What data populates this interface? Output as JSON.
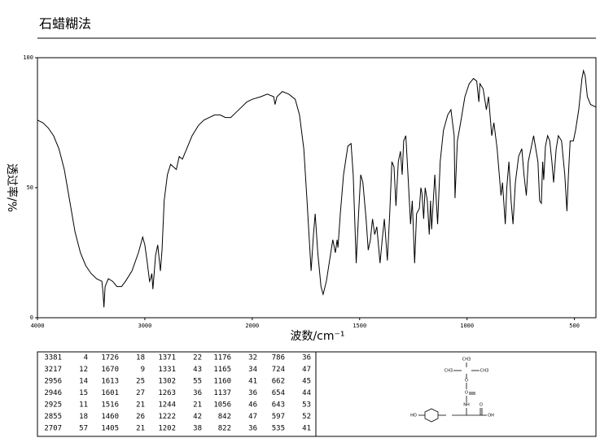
{
  "chart_data": {
    "type": "line",
    "title": "石蜡糊法",
    "x_label": "波数/cm⁻¹",
    "y_label": "透过率/%",
    "xlim": [
      4000,
      400
    ],
    "x_scale_break": 2000,
    "xticks": [
      4000,
      3000,
      2000,
      1500,
      1000,
      500
    ],
    "ylim": [
      0,
      100
    ],
    "yticks": [
      0,
      50,
      100
    ],
    "color": "#000000",
    "x": [
      4000,
      3950,
      3900,
      3850,
      3800,
      3750,
      3700,
      3650,
      3600,
      3550,
      3500,
      3450,
      3400,
      3390,
      3381,
      3370,
      3340,
      3300,
      3260,
      3217,
      3180,
      3120,
      3060,
      3020,
      3000,
      2980,
      2956,
      2946,
      2935,
      2925,
      2900,
      2880,
      2870,
      2855,
      2840,
      2820,
      2790,
      2760,
      2707,
      2680,
      2650,
      2600,
      2560,
      2530,
      2500,
      2450,
      2400,
      2350,
      2300,
      2250,
      2200,
      2150,
      2100,
      2050,
      2000,
      1960,
      1930,
      1900,
      1894,
      1885,
      1860,
      1830,
      1800,
      1780,
      1760,
      1745,
      1726,
      1715,
      1707,
      1695,
      1680,
      1670,
      1655,
      1640,
      1625,
      1613,
      1605,
      1601,
      1590,
      1575,
      1555,
      1540,
      1530,
      1516,
      1505,
      1495,
      1485,
      1470,
      1460,
      1450,
      1440,
      1430,
      1420,
      1405,
      1395,
      1385,
      1371,
      1360,
      1350,
      1340,
      1331,
      1320,
      1310,
      1302,
      1295,
      1285,
      1275,
      1263,
      1255,
      1244,
      1235,
      1222,
      1215,
      1210,
      1202,
      1195,
      1185,
      1176,
      1170,
      1165,
      1160,
      1150,
      1137,
      1125,
      1110,
      1090,
      1075,
      1060,
      1056,
      1045,
      1030,
      1010,
      990,
      970,
      955,
      945,
      940,
      925,
      910,
      900,
      885,
      875,
      860,
      850,
      842,
      835,
      822,
      815,
      805,
      795,
      786,
      775,
      760,
      745,
      735,
      724,
      715,
      700,
      690,
      680,
      670,
      662,
      654,
      648,
      643,
      635,
      625,
      615,
      605,
      597,
      585,
      575,
      560,
      545,
      535,
      528,
      520,
      505,
      495,
      480,
      465,
      458,
      450,
      440,
      425,
      400
    ],
    "values": [
      76,
      75,
      73,
      70,
      65,
      57,
      45,
      33,
      25,
      20,
      17,
      15,
      14,
      10,
      4,
      12,
      15,
      14,
      12,
      12,
      14,
      18,
      25,
      31,
      28,
      22,
      14,
      15,
      17,
      11,
      24,
      28,
      24,
      18,
      26,
      45,
      55,
      59,
      57,
      62,
      61,
      66,
      70,
      72,
      74,
      76,
      77,
      78,
      78,
      77,
      77,
      79,
      81,
      83,
      84,
      85,
      86,
      85,
      82,
      85,
      87,
      86,
      84,
      78,
      65,
      45,
      18,
      32,
      40,
      25,
      12,
      9,
      14,
      22,
      30,
      25,
      30,
      27,
      40,
      55,
      66,
      67,
      55,
      21,
      40,
      55,
      52,
      38,
      26,
      30,
      38,
      32,
      35,
      21,
      30,
      38,
      22,
      40,
      60,
      58,
      43,
      60,
      64,
      55,
      68,
      70,
      55,
      36,
      45,
      21,
      40,
      42,
      50,
      48,
      38,
      50,
      45,
      32,
      45,
      34,
      41,
      55,
      36,
      60,
      72,
      78,
      80,
      70,
      46,
      68,
      75,
      85,
      90,
      92,
      91,
      83,
      90,
      88,
      80,
      85,
      70,
      75,
      65,
      55,
      47,
      52,
      36,
      50,
      60,
      45,
      36,
      52,
      62,
      65,
      55,
      47,
      60,
      66,
      70,
      65,
      60,
      45,
      44,
      60,
      53,
      66,
      70,
      68,
      60,
      52,
      65,
      70,
      68,
      55,
      41,
      55,
      68,
      68,
      72,
      80,
      92,
      95,
      93,
      85,
      82,
      81
    ],
    "peak_table": [
      [
        [
          3381,
          4
        ],
        [
          3217,
          12
        ],
        [
          2956,
          14
        ],
        [
          2946,
          15
        ],
        [
          2925,
          11
        ],
        [
          2855,
          18
        ],
        [
          2707,
          57
        ]
      ],
      [
        [
          1726,
          18
        ],
        [
          1670,
          9
        ],
        [
          1613,
          25
        ],
        [
          1601,
          27
        ],
        [
          1516,
          21
        ],
        [
          1460,
          26
        ],
        [
          1405,
          21
        ]
      ],
      [
        [
          1371,
          22
        ],
        [
          1331,
          43
        ],
        [
          1302,
          55
        ],
        [
          1263,
          36
        ],
        [
          1244,
          21
        ],
        [
          1222,
          42
        ],
        [
          1202,
          38
        ]
      ],
      [
        [
          1176,
          32
        ],
        [
          1165,
          34
        ],
        [
          1160,
          41
        ],
        [
          1137,
          36
        ],
        [
          1056,
          46
        ],
        [
          842,
          47
        ],
        [
          822,
          36
        ]
      ],
      [
        [
          786,
          36
        ],
        [
          724,
          47
        ],
        [
          662,
          45
        ],
        [
          654,
          44
        ],
        [
          643,
          53
        ],
        [
          597,
          52
        ],
        [
          535,
          41
        ]
      ]
    ],
    "structure_labels": [
      "CH3",
      "CH3",
      "CH3",
      "O",
      "O",
      "NH",
      "O",
      "HO",
      "OH"
    ]
  }
}
